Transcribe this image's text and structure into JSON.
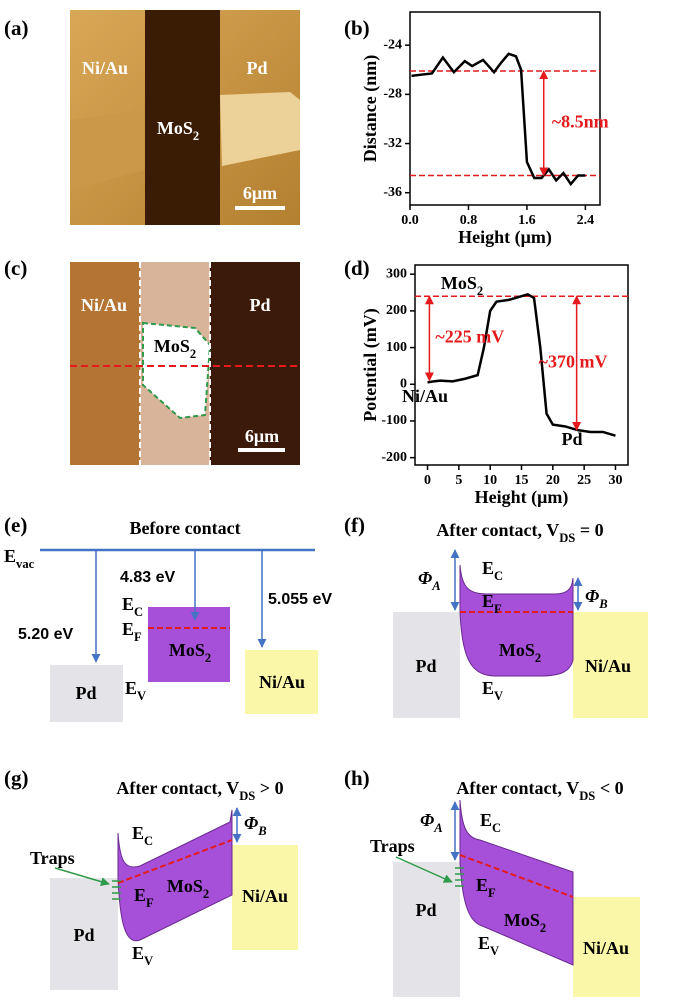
{
  "panel_labels": [
    "(a)",
    "(b)",
    "(c)",
    "(d)",
    "(e)",
    "(f)",
    "(g)",
    "(h)"
  ],
  "image_a": {
    "niau": "Ni/Au",
    "pd": "Pd",
    "mos2": {
      "main": "MoS",
      "sub": "2"
    },
    "scale": "6μm"
  },
  "image_c": {
    "niau": "Ni/Au",
    "pd": "Pd",
    "mos2": {
      "main": "MoS",
      "sub": "2"
    },
    "scale": "6μm"
  },
  "chart_data": [
    {
      "type": "line",
      "xlabel": "Height (μm)",
      "ylabel": "Distance (nm)",
      "x": [
        0.02,
        0.15,
        0.3,
        0.45,
        0.6,
        0.75,
        0.85,
        1.0,
        1.15,
        1.25,
        1.35,
        1.45,
        1.52,
        1.6,
        1.7,
        1.8,
        1.9,
        2.0,
        2.1,
        2.2,
        2.3,
        2.4
      ],
      "series": [
        {
          "color": "#000000",
          "values": [
            -26.5,
            -26.4,
            -26.3,
            -25.0,
            -26.2,
            -25.3,
            -25.7,
            -25.2,
            -26.2,
            -25.4,
            -24.7,
            -24.9,
            -26.0,
            -33.5,
            -34.8,
            -34.8,
            -34.1,
            -35.0,
            -34.4,
            -35.3,
            -34.6,
            -34.6
          ]
        }
      ],
      "xlim": [
        0,
        2.6
      ],
      "ylim": [
        -37,
        -21.3
      ],
      "xticks": [
        {
          "value": 0,
          "label": "0.0"
        },
        0.8,
        1.6,
        2.4
      ],
      "yticks": [
        -24,
        -28,
        -32,
        -36
      ],
      "hlines": [
        {
          "value": -26.1,
          "color": "#e41a1c"
        },
        {
          "value": -34.6,
          "color": "#e41a1c"
        }
      ],
      "arrows": [
        {
          "text": "~8.5nm",
          "x": 1.83,
          "y1": -26.1,
          "y2": -34.6,
          "color": "#e41a1c"
        }
      ]
    },
    {
      "type": "line",
      "xlabel": "Height (μm)",
      "ylabel": "Potential (mV)",
      "x": [
        0,
        1,
        2,
        4,
        6,
        8,
        9,
        10,
        11,
        13,
        15,
        16,
        17,
        18,
        19,
        20,
        22,
        24,
        26,
        28,
        30
      ],
      "series": [
        {
          "color": "#000000",
          "values": [
            5,
            8,
            10,
            8,
            15,
            25,
            100,
            200,
            225,
            230,
            240,
            245,
            235,
            100,
            -80,
            -110,
            -115,
            -125,
            -130,
            -130,
            -140
          ]
        }
      ],
      "xlim": [
        -2,
        32
      ],
      "ylim": [
        -220,
        325
      ],
      "xticks": [
        0,
        5,
        10,
        15,
        20,
        25,
        30
      ],
      "yticks": [
        -200,
        -100,
        0,
        100,
        200,
        300
      ],
      "hlines": [
        {
          "value": 240,
          "color": "#e41a1c"
        }
      ],
      "arrows": [
        {
          "text": "~225 mV",
          "x": 0.3,
          "y1": 10,
          "y2": 240,
          "color": "#e41a1c"
        },
        {
          "text": "~370 mV",
          "x": 23.8,
          "y1": 240,
          "y2": -125,
          "color": "#e41a1c"
        }
      ],
      "labels": [
        {
          "main": "MoS",
          "sub": "2"
        },
        "Ni/Au",
        "Pd"
      ]
    }
  ],
  "diagrams": {
    "e": {
      "title": "Before contact",
      "evac": {
        "main": "E",
        "sub": "vac"
      },
      "ec": {
        "main": "E",
        "sub": "C"
      },
      "ef": {
        "main": "E",
        "sub": "F"
      },
      "ev": {
        "main": "E",
        "sub": "V"
      },
      "pd": "Pd",
      "mos2": {
        "main": "MoS",
        "sub": "2"
      },
      "niau": "Ni/Au",
      "wf_pd": "5.20 eV",
      "wf_mos2": "4.83 eV",
      "wf_niau": "5.055 eV"
    },
    "f": {
      "title": {
        "main": "After contact, V",
        "sub": "DS",
        "tail": " = 0"
      },
      "phi_a": {
        "main": "Φ",
        "sub": "A"
      },
      "phi_b": {
        "main": "Φ",
        "sub": "B"
      },
      "ec": {
        "main": "E",
        "sub": "C"
      },
      "ef": {
        "main": "E",
        "sub": "F"
      },
      "ev": {
        "main": "E",
        "sub": "V"
      },
      "pd": "Pd",
      "mos2": {
        "main": "MoS",
        "sub": "2"
      },
      "niau": "Ni/Au"
    },
    "g": {
      "title": {
        "main": "After contact, V",
        "sub": "DS",
        "tail": " > 0"
      },
      "phi_b": {
        "main": "Φ",
        "sub": "B"
      },
      "traps": "Traps",
      "ec": {
        "main": "E",
        "sub": "C"
      },
      "ef": {
        "main": "E",
        "sub": "F"
      },
      "ev": {
        "main": "E",
        "sub": "V"
      },
      "pd": "Pd",
      "mos2": {
        "main": "MoS",
        "sub": "2"
      },
      "niau": "Ni/Au"
    },
    "h": {
      "title": {
        "main": "After contact, V",
        "sub": "DS",
        "tail": " < 0"
      },
      "phi_a": {
        "main": "Φ",
        "sub": "A"
      },
      "traps": "Traps",
      "ec": {
        "main": "E",
        "sub": "C"
      },
      "ef": {
        "main": "E",
        "sub": "F"
      },
      "ev": {
        "main": "E",
        "sub": "V"
      },
      "pd": "Pd",
      "mos2": {
        "main": "MoS",
        "sub": "2"
      },
      "niau": "Ni/Au"
    }
  }
}
